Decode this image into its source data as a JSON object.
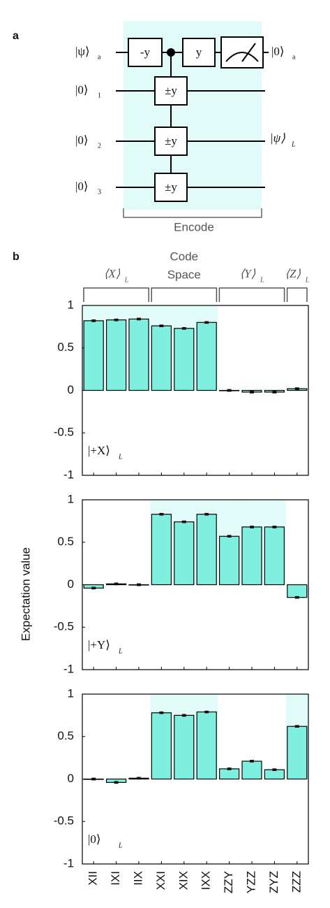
{
  "panel_labels": [
    "a",
    "b"
  ],
  "circuit": {
    "ancilla_in": {
      "ket": "|ψ⟩",
      "sub": "a"
    },
    "inputs": [
      {
        "ket": "|0⟩",
        "sub": "1"
      },
      {
        "ket": "|0⟩",
        "sub": "2"
      },
      {
        "ket": "|0⟩",
        "sub": "3"
      }
    ],
    "gates": [
      "-y",
      "y"
    ],
    "controlled_gate": "±y",
    "ancilla_out": {
      "ket": "|0⟩",
      "sub": "a"
    },
    "logical_out": {
      "ket": "|ψ⟩",
      "sub": "L"
    },
    "encode_label": "Encode"
  },
  "groups": [
    {
      "text": "⟨X⟩",
      "sub": "L"
    },
    {
      "lines": [
        "Code",
        "Space"
      ]
    },
    {
      "text": "⟨Y⟩",
      "sub": "L"
    },
    {
      "text": "⟨Z⟩",
      "sub": "L"
    }
  ],
  "y_label": "Expectation value",
  "chart_data": [
    {
      "type": "bar",
      "state": {
        "text": "|+X⟩",
        "sub": "L"
      },
      "values": [
        0.82,
        0.83,
        0.84,
        0.76,
        0.73,
        0.8,
        0.0,
        -0.02,
        -0.02,
        0.02
      ],
      "errors": [
        0.01,
        0.01,
        0.01,
        0.01,
        0.01,
        0.01,
        0.01,
        0.01,
        0.01,
        0.01
      ],
      "ideal_values": [
        1,
        1,
        1,
        1,
        1,
        1,
        0,
        0,
        0,
        0
      ],
      "color": "#7ff0df",
      "ideal_color": "#e1fbf8",
      "ylim": [
        -1,
        1
      ],
      "yticks": [
        -1,
        -0.5,
        0,
        0.5,
        1
      ]
    },
    {
      "type": "bar",
      "state": {
        "text": "|+Y⟩",
        "sub": "L"
      },
      "values": [
        -0.04,
        0.01,
        0.0,
        0.83,
        0.74,
        0.83,
        0.57,
        0.68,
        0.68,
        -0.15
      ],
      "errors": [
        0.01,
        0.01,
        0.01,
        0.01,
        0.01,
        0.01,
        0.01,
        0.01,
        0.01,
        0.01
      ],
      "ideal_values": [
        0,
        0,
        0,
        1,
        1,
        1,
        1,
        1,
        1,
        0
      ],
      "color": "#7ff0df",
      "ideal_color": "#e1fbf8",
      "ylim": [
        -1,
        1
      ],
      "yticks": [
        -1,
        -0.5,
        0,
        0.5,
        1
      ]
    },
    {
      "type": "bar",
      "state": {
        "text": "|0⟩",
        "sub": "L"
      },
      "categories": [
        "XII",
        "IXI",
        "IIX",
        "XXI",
        "XIX",
        "IXX",
        "ZZY",
        "YZZ",
        "ZYZ",
        "ZZZ"
      ],
      "values": [
        0.0,
        -0.04,
        0.01,
        0.78,
        0.75,
        0.79,
        0.12,
        0.21,
        0.11,
        0.62
      ],
      "errors": [
        0.01,
        0.01,
        0.01,
        0.01,
        0.01,
        0.01,
        0.01,
        0.01,
        0.01,
        0.01
      ],
      "ideal_values": [
        0,
        0,
        0,
        1,
        1,
        1,
        0,
        0,
        0,
        1
      ],
      "color": "#7ff0df",
      "ideal_color": "#e1fbf8",
      "ylim": [
        -1,
        1
      ],
      "yticks": [
        -1,
        -0.5,
        0,
        0.5,
        1
      ]
    }
  ]
}
